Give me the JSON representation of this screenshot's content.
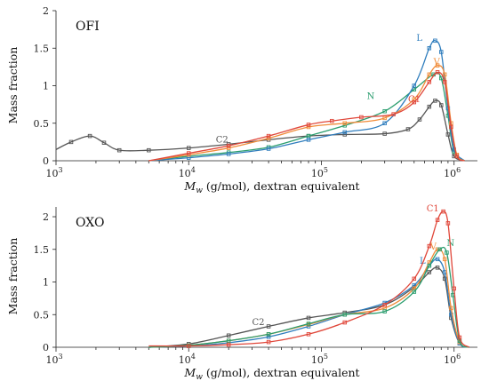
{
  "chart_data": [
    {
      "type": "line",
      "panel_label": "OFI",
      "xlabel_symbol": "M",
      "xlabel_sub": "w",
      "xlabel_rest": " (g/mol), dextran equivalent",
      "ylabel": "Mass fraction",
      "xscale": "log",
      "xlim": [
        1000,
        1500000
      ],
      "ylim": [
        0,
        2
      ],
      "yticks": [
        0,
        0.5,
        1,
        1.5,
        2
      ],
      "ytick_labels": [
        "0",
        "0.5",
        "1",
        "1.5",
        "2"
      ],
      "xticks": [
        {
          "base": "10",
          "exp": "3",
          "value": 1000
        },
        {
          "base": "10",
          "exp": "4",
          "value": 10000
        },
        {
          "base": "10",
          "exp": "5",
          "value": 100000
        },
        {
          "base": "10",
          "exp": "6",
          "value": 1000000
        }
      ],
      "series": [
        {
          "name": "C2",
          "color": "#555555",
          "label_at": [
            16000,
            0.24
          ],
          "x": [
            1000,
            1300,
            1800,
            2300,
            3000,
            5000,
            10000,
            20000,
            40000,
            80000,
            150000,
            300000,
            450000,
            550000,
            650000,
            720000,
            800000,
            900000,
            1000000,
            1200000
          ],
          "y": [
            0.15,
            0.25,
            0.33,
            0.24,
            0.14,
            0.14,
            0.17,
            0.22,
            0.28,
            0.33,
            0.35,
            0.36,
            0.42,
            0.55,
            0.72,
            0.8,
            0.74,
            0.35,
            0.06,
            0
          ]
        },
        {
          "name": "N",
          "color": "#2a9d6e",
          "label_at": [
            220000,
            0.82
          ],
          "x": [
            5000,
            10000,
            20000,
            40000,
            80000,
            150000,
            300000,
            500000,
            700000,
            800000,
            900000,
            1000000,
            1200000
          ],
          "y": [
            0,
            0.06,
            0.11,
            0.18,
            0.33,
            0.47,
            0.66,
            0.95,
            1.15,
            1.1,
            0.6,
            0.12,
            0
          ]
        },
        {
          "name": "L",
          "color": "#2f7dbd",
          "label_at": [
            520000,
            1.6
          ],
          "x": [
            5000,
            10000,
            20000,
            40000,
            80000,
            150000,
            300000,
            500000,
            650000,
            720000,
            800000,
            900000,
            1000000,
            1200000
          ],
          "y": [
            0,
            0.04,
            0.09,
            0.16,
            0.28,
            0.38,
            0.5,
            1.0,
            1.5,
            1.6,
            1.45,
            0.7,
            0.15,
            0
          ]
        },
        {
          "name": "V",
          "color": "#f08c3a",
          "label_at": [
            700000,
            1.28
          ],
          "x": [
            5000,
            10000,
            20000,
            40000,
            80000,
            150000,
            300000,
            500000,
            650000,
            750000,
            850000,
            950000,
            1050000,
            1200000
          ],
          "y": [
            0,
            0.08,
            0.17,
            0.3,
            0.45,
            0.5,
            0.57,
            0.82,
            1.15,
            1.27,
            1.15,
            0.5,
            0.08,
            0
          ]
        },
        {
          "name": "C1",
          "color": "#e0473a",
          "label_at": [
            450000,
            0.78
          ],
          "x": [
            5000,
            10000,
            20000,
            40000,
            80000,
            120000,
            200000,
            350000,
            500000,
            650000,
            750000,
            850000,
            950000,
            1050000,
            1200000
          ],
          "y": [
            0,
            0.1,
            0.2,
            0.33,
            0.48,
            0.53,
            0.58,
            0.62,
            0.78,
            1.05,
            1.18,
            1.05,
            0.45,
            0.06,
            0
          ]
        }
      ]
    },
    {
      "type": "line",
      "panel_label": "OXO",
      "xlabel_symbol": "M",
      "xlabel_sub": "w",
      "xlabel_rest": " (g/mol), dextran equivalent",
      "ylabel": "Mass fraction",
      "xscale": "log",
      "xlim": [
        1000,
        1500000
      ],
      "ylim": [
        0,
        2.15
      ],
      "yticks": [
        0,
        0.5,
        1,
        1.5,
        2
      ],
      "ytick_labels": [
        "0",
        "0.5",
        "1",
        "1.5",
        "2"
      ],
      "xticks": [
        {
          "base": "10",
          "exp": "3",
          "value": 1000
        },
        {
          "base": "10",
          "exp": "4",
          "value": 10000
        },
        {
          "base": "10",
          "exp": "5",
          "value": 100000
        },
        {
          "base": "10",
          "exp": "6",
          "value": 1000000
        }
      ],
      "series": [
        {
          "name": "C2",
          "color": "#555555",
          "label_at": [
            30000,
            0.34
          ],
          "x": [
            5000,
            10000,
            20000,
            40000,
            80000,
            150000,
            300000,
            500000,
            650000,
            750000,
            850000,
            950000,
            1100000,
            1300000
          ],
          "y": [
            0,
            0.05,
            0.18,
            0.32,
            0.45,
            0.53,
            0.65,
            0.92,
            1.15,
            1.22,
            1.05,
            0.45,
            0.06,
            0
          ]
        },
        {
          "name": "L",
          "color": "#2f7dbd",
          "label_at": [
            550000,
            1.28
          ],
          "x": [
            5000,
            10000,
            20000,
            40000,
            80000,
            150000,
            300000,
            500000,
            650000,
            750000,
            850000,
            950000,
            1100000,
            1300000
          ],
          "y": [
            0,
            0.02,
            0.07,
            0.16,
            0.32,
            0.5,
            0.68,
            0.95,
            1.25,
            1.35,
            1.15,
            0.5,
            0.06,
            0
          ]
        },
        {
          "name": "V",
          "color": "#f08c3a",
          "label_at": [
            660000,
            1.5
          ],
          "x": [
            5000,
            10000,
            20000,
            40000,
            80000,
            150000,
            300000,
            500000,
            650000,
            750000,
            850000,
            950000,
            1100000,
            1300000
          ],
          "y": [
            0,
            0.03,
            0.1,
            0.2,
            0.35,
            0.5,
            0.6,
            0.9,
            1.3,
            1.5,
            1.35,
            0.6,
            0.08,
            0
          ]
        },
        {
          "name": "N",
          "color": "#2a9d6e",
          "label_at": [
            880000,
            1.55
          ],
          "x": [
            5000,
            10000,
            20000,
            40000,
            80000,
            150000,
            300000,
            500000,
            650000,
            780000,
            880000,
            980000,
            1100000,
            1300000
          ],
          "y": [
            0,
            0.03,
            0.1,
            0.2,
            0.36,
            0.5,
            0.55,
            0.85,
            1.25,
            1.5,
            1.45,
            0.8,
            0.1,
            0
          ]
        },
        {
          "name": "C1",
          "color": "#e0473a",
          "label_at": [
            620000,
            2.08
          ],
          "x": [
            5000,
            10000,
            20000,
            40000,
            80000,
            150000,
            300000,
            500000,
            650000,
            750000,
            830000,
            900000,
            1000000,
            1100000,
            1300000
          ],
          "y": [
            0.02,
            0.02,
            0.04,
            0.08,
            0.2,
            0.38,
            0.65,
            1.05,
            1.55,
            1.95,
            2.08,
            1.9,
            0.9,
            0.15,
            0
          ]
        }
      ]
    }
  ]
}
